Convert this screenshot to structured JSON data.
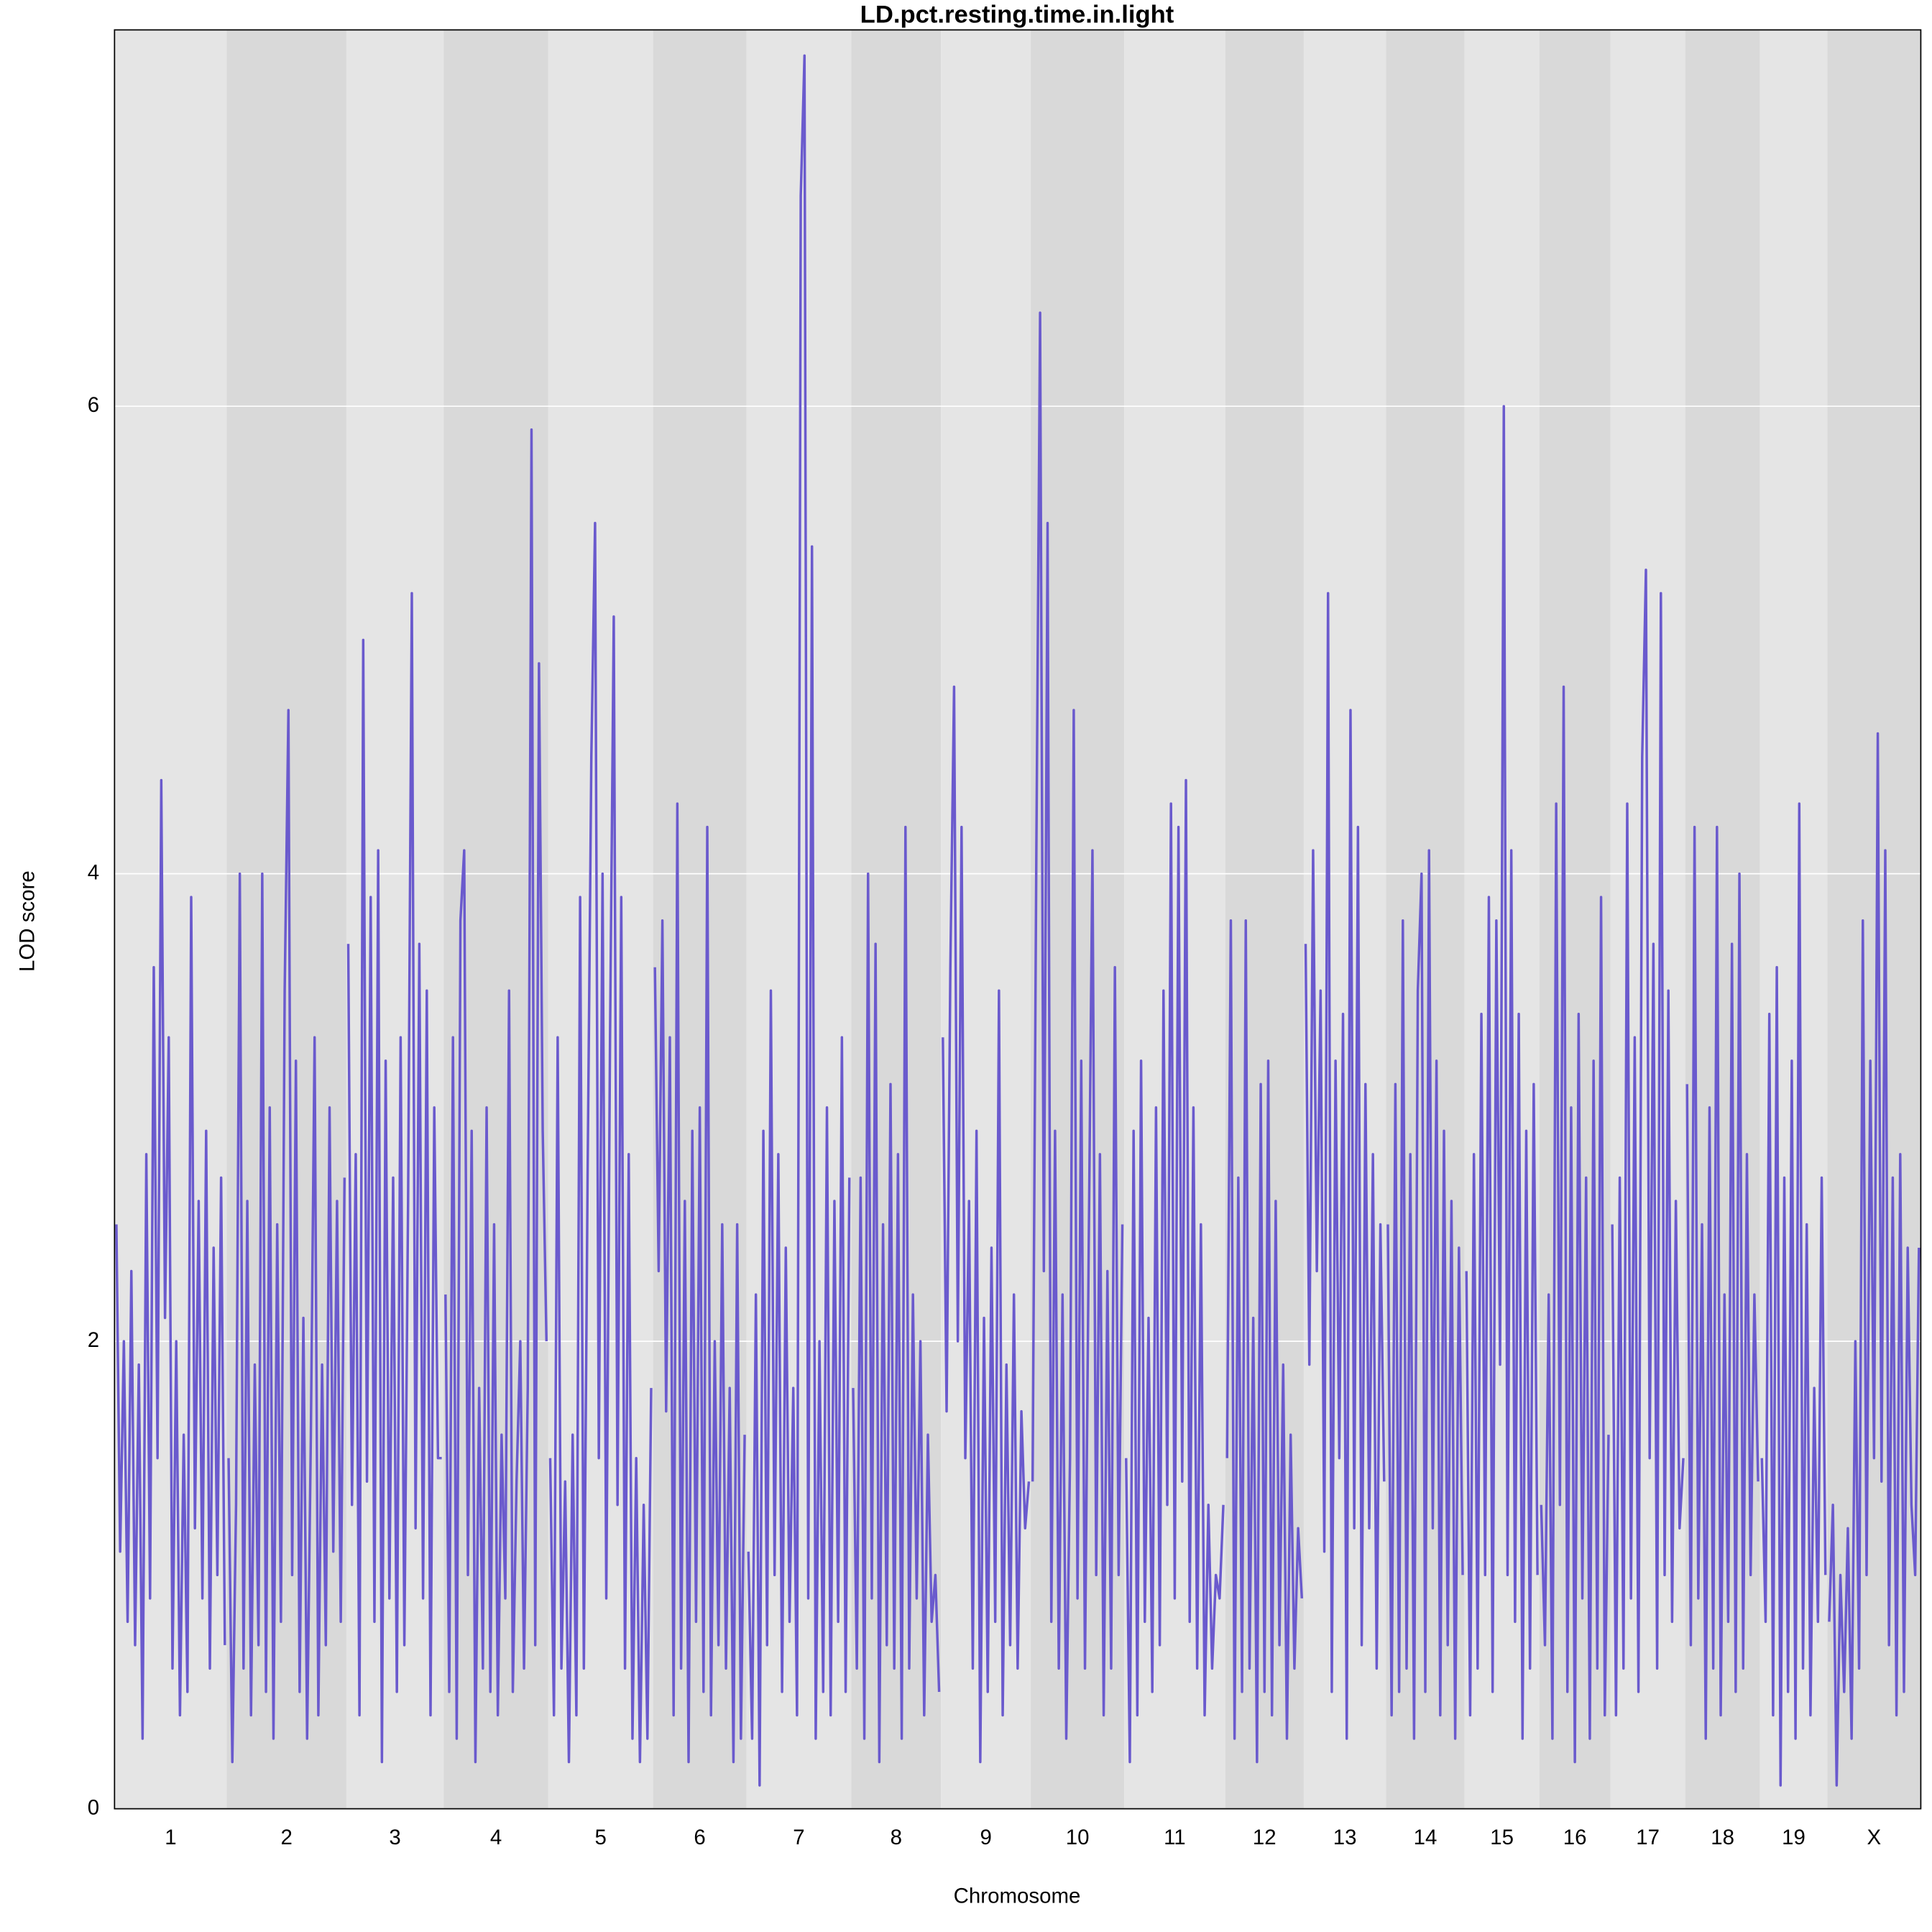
{
  "chart_data": {
    "type": "line",
    "title": "LD.pct.resting.time.in.light",
    "xlabel": "Chromosome",
    "ylabel": "LOD score",
    "ylim": [
      0,
      7.61
    ],
    "yticks": [
      0,
      2,
      4,
      6
    ],
    "grid": true,
    "color": "#6a5acd",
    "band_colors": [
      "#e5e5e5",
      "#d9d9d9"
    ],
    "chromosomes": [
      {
        "label": "1",
        "values": [
          2.5,
          1.1,
          2.0,
          0.8,
          2.3,
          0.7,
          1.9,
          0.3,
          2.8,
          0.9,
          3.6,
          1.5,
          4.4,
          2.1,
          3.3,
          0.6,
          2.0,
          0.4,
          1.6,
          0.5,
          3.9,
          1.2,
          2.6,
          0.9,
          2.9,
          0.6,
          2.4,
          1.0,
          2.7,
          0.7
        ]
      },
      {
        "label": "2",
        "values": [
          1.5,
          0.2,
          1.3,
          4.0,
          0.6,
          2.6,
          0.4,
          1.9,
          0.7,
          4.0,
          0.5,
          3.0,
          0.3,
          2.5,
          0.8,
          3.5,
          4.7,
          1.0,
          3.2,
          0.5,
          2.1,
          0.3,
          1.6,
          3.3,
          0.4,
          1.9,
          0.7,
          3.0,
          1.1,
          2.6,
          0.8,
          2.7
        ]
      },
      {
        "label": "3",
        "values": [
          3.7,
          1.3,
          2.8,
          0.4,
          5.0,
          1.4,
          3.9,
          0.8,
          4.1,
          0.2,
          3.2,
          0.9,
          2.7,
          0.5,
          3.3,
          0.7,
          2.6,
          5.2,
          1.2,
          3.7,
          0.9,
          3.5,
          0.4,
          3.0,
          1.5,
          1.5
        ]
      },
      {
        "label": "4",
        "values": [
          2.2,
          0.5,
          3.3,
          0.3,
          3.8,
          4.1,
          1.0,
          2.9,
          0.2,
          1.8,
          0.6,
          3.0,
          0.5,
          2.5,
          0.4,
          1.6,
          0.9,
          3.5,
          0.5,
          1.4,
          2.0,
          0.6,
          1.8,
          5.9,
          0.7,
          4.9,
          2.9,
          2.0
        ]
      },
      {
        "label": "5",
        "values": [
          1.5,
          0.4,
          3.3,
          0.6,
          1.4,
          0.2,
          1.6,
          0.4,
          3.9,
          0.6,
          2.7,
          4.5,
          5.5,
          1.5,
          4.0,
          0.9,
          3.3,
          5.1,
          1.3,
          3.9,
          0.6,
          2.8,
          0.3,
          1.5,
          0.2,
          1.3,
          0.3,
          1.8
        ]
      },
      {
        "label": "6",
        "values": [
          3.6,
          2.3,
          3.8,
          1.7,
          3.3,
          0.4,
          4.3,
          0.6,
          2.6,
          0.2,
          2.9,
          0.8,
          3.0,
          0.5,
          4.2,
          0.4,
          2.0,
          0.7,
          2.5,
          0.6,
          1.8,
          0.2,
          2.5,
          0.3,
          1.6
        ]
      },
      {
        "label": "7",
        "values": [
          1.1,
          0.3,
          2.2,
          0.1,
          2.9,
          0.7,
          3.5,
          1.0,
          2.8,
          0.5,
          2.4,
          0.8,
          1.8,
          0.4,
          6.9,
          7.5,
          0.9,
          5.4,
          0.3,
          2.0,
          0.5,
          3.0,
          0.4,
          2.6,
          0.8,
          3.3,
          0.5,
          2.7
        ]
      },
      {
        "label": "8",
        "values": [
          1.8,
          0.6,
          2.7,
          0.3,
          4.0,
          0.9,
          3.7,
          0.2,
          2.5,
          0.7,
          3.1,
          0.6,
          2.8,
          0.3,
          4.2,
          0.6,
          2.2,
          0.9,
          2.0,
          0.4,
          1.6,
          0.8,
          1.0,
          0.5
        ]
      },
      {
        "label": "9",
        "values": [
          3.3,
          1.7,
          3.6,
          4.8,
          2.0,
          4.2,
          1.5,
          2.6,
          0.6,
          2.9,
          0.2,
          2.1,
          0.5,
          2.4,
          0.8,
          3.5,
          0.4,
          1.9,
          0.7,
          2.2,
          0.6,
          1.7,
          1.2,
          1.4
        ]
      },
      {
        "label": "10",
        "values": [
          1.4,
          4.1,
          6.4,
          2.3,
          5.5,
          0.8,
          2.9,
          0.6,
          2.2,
          0.3,
          1.5,
          4.7,
          0.9,
          3.2,
          0.6,
          2.4,
          4.1,
          1.0,
          2.8,
          0.4,
          2.3,
          0.6,
          3.6,
          1.0,
          2.5
        ]
      },
      {
        "label": "11",
        "values": [
          1.5,
          0.2,
          2.9,
          0.4,
          3.2,
          0.8,
          2.1,
          0.5,
          3.0,
          0.7,
          3.5,
          1.3,
          4.3,
          0.9,
          4.2,
          1.4,
          4.4,
          0.8,
          3.0,
          0.6,
          2.5,
          0.4,
          1.3,
          0.6,
          1.0,
          0.9,
          1.3
        ]
      },
      {
        "label": "12",
        "values": [
          1.5,
          3.8,
          0.3,
          2.7,
          0.5,
          3.8,
          0.6,
          2.1,
          0.2,
          3.1,
          0.5,
          3.2,
          0.4,
          2.6,
          0.7,
          1.9,
          0.3,
          1.6,
          0.6,
          1.2,
          0.9
        ]
      },
      {
        "label": "13",
        "values": [
          3.7,
          1.9,
          4.1,
          2.3,
          3.5,
          1.1,
          5.2,
          0.5,
          3.2,
          1.5,
          3.4,
          0.3,
          4.7,
          1.2,
          4.2,
          0.7,
          3.1,
          1.2,
          2.8,
          0.6,
          2.5,
          1.4
        ]
      },
      {
        "label": "14",
        "values": [
          2.5,
          0.4,
          3.1,
          0.5,
          3.8,
          0.6,
          2.8,
          0.3,
          3.5,
          4.0,
          0.5,
          4.1,
          1.2,
          3.2,
          0.4,
          2.9,
          0.7,
          2.6,
          0.3,
          2.4,
          1.0
        ]
      },
      {
        "label": "15",
        "values": [
          2.3,
          0.4,
          2.8,
          0.6,
          3.4,
          1.0,
          3.9,
          0.5,
          3.8,
          1.9,
          6.0,
          1.0,
          4.1,
          0.8,
          3.4,
          0.3,
          2.9,
          0.6,
          3.1,
          1.0
        ]
      },
      {
        "label": "16",
        "values": [
          1.3,
          0.7,
          2.2,
          0.3,
          4.3,
          1.3,
          4.8,
          0.5,
          3.0,
          0.2,
          3.4,
          0.9,
          2.7,
          0.3,
          3.2,
          0.6,
          3.9,
          0.4,
          1.6
        ]
      },
      {
        "label": "17",
        "values": [
          2.5,
          0.4,
          2.7,
          0.6,
          4.3,
          0.9,
          3.3,
          0.5,
          4.5,
          5.3,
          1.5,
          3.7,
          0.6,
          5.2,
          1.0,
          3.5,
          0.8,
          2.6,
          1.2,
          1.5
        ]
      },
      {
        "label": "18",
        "values": [
          3.1,
          0.7,
          4.2,
          0.9,
          2.5,
          0.3,
          3.0,
          0.6,
          4.2,
          0.4,
          2.2,
          0.8,
          3.7,
          0.5,
          4.0,
          0.6,
          2.8,
          1.0,
          2.2,
          1.4
        ]
      },
      {
        "label": "19",
        "values": [
          1.5,
          0.8,
          3.4,
          0.4,
          3.6,
          0.1,
          2.7,
          0.5,
          3.2,
          0.3,
          4.3,
          0.6,
          2.5,
          0.4,
          1.8,
          0.8,
          2.7,
          1.0
        ]
      },
      {
        "label": "X",
        "values": [
          0.8,
          1.3,
          0.1,
          1.0,
          0.5,
          1.2,
          0.3,
          2.0,
          0.6,
          3.8,
          1.0,
          3.2,
          1.5,
          4.6,
          1.4,
          4.1,
          0.7,
          2.7,
          0.4,
          2.8,
          0.5,
          2.4,
          1.3,
          1.0,
          2.4
        ]
      }
    ]
  }
}
